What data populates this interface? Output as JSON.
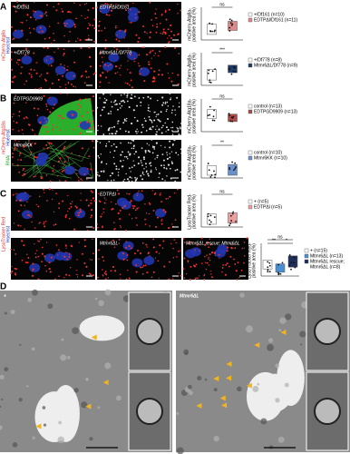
{
  "panels": [
    {
      "label": "A",
      "side_label": [
        "mCherry-Atg8a",
        "Hoechst"
      ],
      "rows": [
        {
          "images": [
            "+/Df161",
            "EDTPΔl/Df161"
          ],
          "plot": {
            "y_label": [
              "mCherry-Atg8a-",
              "positive area (%)"
            ],
            "significance": [
              "ns"
            ],
            "legend": [
              "+/Df161 (n=10)",
              "EDTPΔl/Df161 (n=11)"
            ]
          }
        },
        {
          "images": [
            "+/Df778",
            "Mtmr6ΔL/Df778"
          ],
          "plot": {
            "y_label": [
              "mCherry-Atg8a-",
              "positive area (%)"
            ],
            "significance": [
              "***"
            ],
            "legend": [
              "+/Df778 (n=8)",
              "Mtmr6ΔL/Df778 (n=9)"
            ]
          }
        }
      ]
    },
    {
      "label": "B",
      "side_label": [
        "mCherry-Atg18a",
        "Hoechst",
        "RNAi"
      ],
      "rows": [
        {
          "images": [
            "EDTPGD9909",
            ""
          ],
          "plot": {
            "y_label": [
              "mCherry-Atg18a-",
              "positive area (%)"
            ],
            "significance": [
              "ns"
            ],
            "legend": [
              "control (n=13)",
              "EDTPGD9909 (n=13)"
            ]
          }
        },
        {
          "images": [
            "Mtmr6KK",
            ""
          ],
          "plot": {
            "y_label": [
              "mCherry-Atg18a-",
              "positive area (%)"
            ],
            "significance": [
              "**"
            ],
            "legend": [
              "control (n=10)",
              "Mtmr6KK (n=10)"
            ]
          }
        }
      ]
    },
    {
      "label": "C",
      "side_label": [
        "LysoTracker Red",
        "Hoechst"
      ],
      "rows": [
        {
          "images": [
            "",
            "EDTPΔl"
          ],
          "plot": {
            "y_label": [
              "LysoTracker Red-",
              "positive area (%)"
            ],
            "significance": [
              "ns"
            ],
            "legend": [
              "+ (n=5)",
              "EDTPΔl (n=5)"
            ]
          }
        },
        {
          "images": [
            "",
            "Mtmr6ΔL",
            "Mtmr6ΔL rescue; Mtmr6ΔL"
          ],
          "plot": {
            "y_label": [
              "LysoTracker Red-",
              "positive area (%)"
            ],
            "significance": [
              "ns",
              "**",
              "*"
            ],
            "legend": [
              "+ (n=15)",
              "Mtmr6ΔL (n=13)",
              "Mtmr6ΔL rescue;",
              "Mtmr6ΔL (n=8)"
            ]
          }
        }
      ]
    },
    {
      "label": "D",
      "images": [
        "+",
        "Mtmr6ΔL"
      ]
    }
  ]
}
